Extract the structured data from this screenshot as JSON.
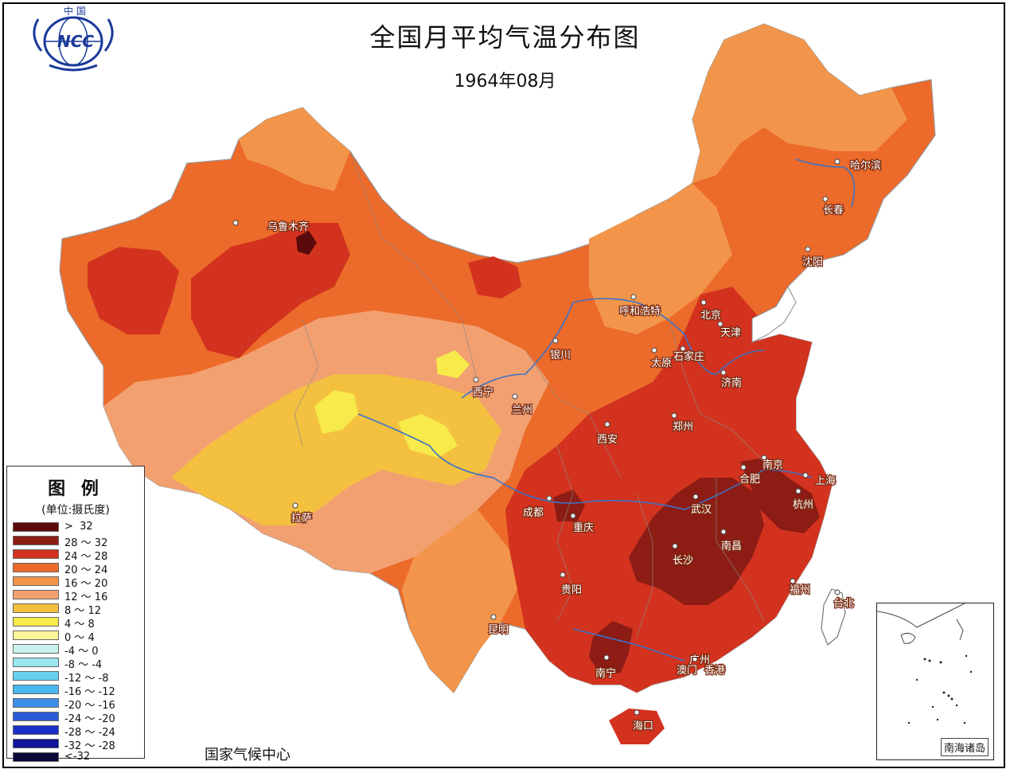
{
  "title": "全国月平均气温分布图",
  "subtitle": "1964年08月",
  "organization": "国家气候中心",
  "logo": {
    "top_text": "中 国",
    "mark_text": "NCC"
  },
  "legend": {
    "title": "图 例",
    "unit": "(单位:摄氏度)",
    "items": [
      {
        "label": ">  32",
        "color": "#5a0a0a"
      },
      {
        "label": "28 ～ 32",
        "color": "#8c1c14"
      },
      {
        "label": "24 ～ 28",
        "color": "#d2321e"
      },
      {
        "label": "20 ～ 24",
        "color": "#ec6a2a"
      },
      {
        "label": "16 ～ 20",
        "color": "#f2954a"
      },
      {
        "label": "12 ～ 16",
        "color": "#f2a070"
      },
      {
        "label": "8 ～ 12",
        "color": "#f3c040"
      },
      {
        "label": "4 ～ 8",
        "color": "#f7ea4a"
      },
      {
        "label": "0 ～ 4",
        "color": "#fbf59a"
      },
      {
        "label": "-4 ～ 0",
        "color": "#c8f2ee"
      },
      {
        "label": "-8 ～ -4",
        "color": "#9ae6ee"
      },
      {
        "label": "-12 ～ -8",
        "color": "#66d0f0"
      },
      {
        "label": "-16 ～ -12",
        "color": "#4ab8ee"
      },
      {
        "label": "-20 ～ -16",
        "color": "#3a8ee8"
      },
      {
        "label": "-24 ～ -20",
        "color": "#2a5cd8"
      },
      {
        "label": "-28 ～ -24",
        "color": "#1a2ec8"
      },
      {
        "label": "-32 ～ -28",
        "color": "#10169a"
      },
      {
        "label": "<-32",
        "color": "#080838"
      }
    ]
  },
  "cities": [
    {
      "name": "乌鲁木齐"
    },
    {
      "name": "哈尔滨"
    },
    {
      "name": "长春"
    },
    {
      "name": "沈阳"
    },
    {
      "name": "呼和浩特"
    },
    {
      "name": "北京"
    },
    {
      "name": "天津"
    },
    {
      "name": "石家庄"
    },
    {
      "name": "太原"
    },
    {
      "name": "银川"
    },
    {
      "name": "济南"
    },
    {
      "name": "西宁"
    },
    {
      "name": "兰州"
    },
    {
      "name": "郑州"
    },
    {
      "name": "西安"
    },
    {
      "name": "南京"
    },
    {
      "name": "合肥"
    },
    {
      "name": "上海"
    },
    {
      "name": "成都"
    },
    {
      "name": "武汉"
    },
    {
      "name": "杭州"
    },
    {
      "name": "拉萨"
    },
    {
      "name": "重庆"
    },
    {
      "name": "南昌"
    },
    {
      "name": "长沙"
    },
    {
      "name": "贵阳"
    },
    {
      "name": "福州"
    },
    {
      "name": "台北"
    },
    {
      "name": "昆明"
    },
    {
      "name": "南宁"
    },
    {
      "name": "广州"
    },
    {
      "name": "澳门"
    },
    {
      "name": "香港"
    },
    {
      "name": "海口"
    }
  ],
  "inset": {
    "label": "南海诸岛"
  },
  "colors": {
    "river": "#3b73c8",
    "border": "#8a8a8a"
  }
}
